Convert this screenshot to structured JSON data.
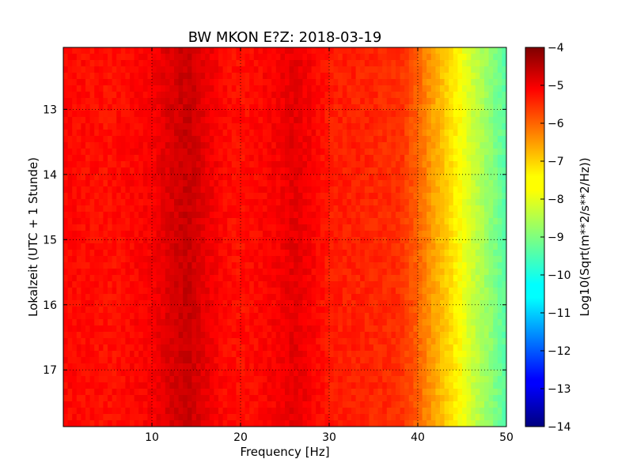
{
  "chart_data": {
    "type": "heatmap",
    "title": "BW MKON E?Z: 2018-03-19",
    "xlabel": "Frequency [Hz]",
    "ylabel": "Lokalzeit (UTC + 1 Stunde)",
    "xlim": [
      0,
      50
    ],
    "ylim": [
      17.87,
      12.05
    ],
    "x_ticks": [
      10,
      20,
      30,
      40,
      50
    ],
    "x_tick_labels": [
      "10",
      "20",
      "30",
      "40",
      "50"
    ],
    "y_ticks": [
      13,
      14,
      15,
      16,
      17
    ],
    "y_tick_labels": [
      "13",
      "14",
      "15",
      "16",
      "17"
    ],
    "grid": true,
    "colorbar": {
      "label": "Log10(Sqrt(m**2/s**2/Hz))",
      "colormap": "jet",
      "range": [
        -14,
        -4
      ],
      "ticks": [
        -4,
        -5,
        -6,
        -7,
        -8,
        -9,
        -10,
        -11,
        -12,
        -13,
        -14
      ],
      "tick_labels": [
        "−4",
        "−5",
        "−6",
        "−7",
        "−8",
        "−9",
        "−10",
        "−11",
        "−12",
        "−13",
        "−14"
      ]
    },
    "frequency_profile": {
      "frequency_hz": [
        0,
        5,
        10,
        12,
        14,
        16,
        18,
        20,
        22,
        24,
        26,
        28,
        30,
        35,
        38,
        40,
        42,
        44,
        46,
        48,
        50
      ],
      "log10_amplitude": [
        -5.3,
        -5.4,
        -5.2,
        -4.9,
        -4.7,
        -5.0,
        -5.3,
        -5.4,
        -5.3,
        -5.2,
        -5.0,
        -5.2,
        -5.5,
        -5.6,
        -5.7,
        -6.2,
        -6.9,
        -7.5,
        -8.2,
        -8.8,
        -9.4
      ]
    },
    "time_range_hours": [
      12.05,
      17.87
    ]
  }
}
